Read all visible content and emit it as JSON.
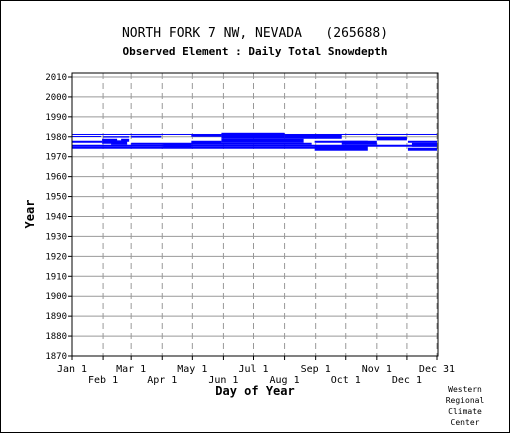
{
  "chart_data": {
    "type": "bar",
    "title": "NORTH FORK 7 NW, NEVADA   (265688)",
    "subtitle": "Observed Element : Daily Total Snowdepth",
    "xlabel": "Day of Year",
    "ylabel": "Year",
    "xlim": [
      1,
      366
    ],
    "ylim": [
      1870,
      2012
    ],
    "yticks": [
      1870,
      1880,
      1890,
      1900,
      1910,
      1920,
      1930,
      1940,
      1950,
      1960,
      1970,
      1980,
      1990,
      2000,
      2010
    ],
    "xticks_upper": [
      {
        "label": "Jan 1",
        "day": 1
      },
      {
        "label": "Mar 1",
        "day": 60
      },
      {
        "label": "May 1",
        "day": 121
      },
      {
        "label": "Jul 1",
        "day": 182
      },
      {
        "label": "Sep 1",
        "day": 244
      },
      {
        "label": "Nov 1",
        "day": 305
      },
      {
        "label": "Dec 31",
        "day": 365
      }
    ],
    "xticks_lower": [
      {
        "label": "Feb 1",
        "day": 32
      },
      {
        "label": "Apr 1",
        "day": 91
      },
      {
        "label": "Jun 1",
        "day": 152
      },
      {
        "label": "Aug 1",
        "day": 213
      },
      {
        "label": "Oct 1",
        "day": 274
      },
      {
        "label": "Dec 1",
        "day": 335
      }
    ],
    "grid": true,
    "colors": {
      "data": "#0000ff",
      "hgrid": "#999999",
      "vgrid": "#999999"
    },
    "segments": [
      {
        "year_start": 1981.0,
        "year_end": 1981.4,
        "day_start": 1,
        "day_end": 365
      },
      {
        "year_start": 1980.0,
        "year_end": 1980.4,
        "day_start": 1,
        "day_end": 30
      },
      {
        "year_start": 1979.6,
        "year_end": 1980.3,
        "day_start": 32,
        "day_end": 58
      },
      {
        "year_start": 1979.6,
        "year_end": 1980.5,
        "day_start": 60,
        "day_end": 90
      },
      {
        "year_start": 1977.0,
        "year_end": 1978.0,
        "day_start": 1,
        "day_end": 31
      },
      {
        "year_start": 1976.5,
        "year_end": 1979.0,
        "day_start": 31,
        "day_end": 46
      },
      {
        "year_start": 1977.5,
        "year_end": 1979.0,
        "day_start": 50,
        "day_end": 58
      },
      {
        "year_start": 1976.0,
        "year_end": 1978.2,
        "day_start": 40,
        "day_end": 56
      },
      {
        "year_start": 1975.0,
        "year_end": 1976.0,
        "day_start": 1,
        "day_end": 365
      },
      {
        "year_start": 1974.0,
        "year_end": 1975.0,
        "day_start": 1,
        "day_end": 245
      },
      {
        "year_start": 1976.0,
        "year_end": 1977.0,
        "day_start": 60,
        "day_end": 240
      },
      {
        "year_start": 1974.5,
        "year_end": 1976.5,
        "day_start": 92,
        "day_end": 120
      },
      {
        "year_start": 1976.8,
        "year_end": 1978.0,
        "day_start": 120,
        "day_end": 150
      },
      {
        "year_start": 1980.0,
        "year_end": 1981.0,
        "day_start": 120,
        "day_end": 150
      },
      {
        "year_start": 1977.0,
        "year_end": 1979.0,
        "day_start": 150,
        "day_end": 232
      },
      {
        "year_start": 1979.0,
        "year_end": 1982.0,
        "day_start": 150,
        "day_end": 213
      },
      {
        "year_start": 1979.0,
        "year_end": 1981.0,
        "day_start": 213,
        "day_end": 270
      },
      {
        "year_start": 1973.0,
        "year_end": 1975.5,
        "day_start": 243,
        "day_end": 296
      },
      {
        "year_start": 1977.0,
        "year_end": 1978.0,
        "day_start": 243,
        "day_end": 296
      },
      {
        "year_start": 1976.0,
        "year_end": 1978.0,
        "day_start": 270,
        "day_end": 305
      },
      {
        "year_start": 1978.2,
        "year_end": 1980.0,
        "day_start": 305,
        "day_end": 335
      },
      {
        "year_start": 1977.0,
        "year_end": 1978.0,
        "day_start": 336,
        "day_end": 365
      },
      {
        "year_start": 1973.0,
        "year_end": 1974.5,
        "day_start": 336,
        "day_end": 365
      },
      {
        "year_start": 1975.0,
        "year_end": 1977.0,
        "day_start": 340,
        "day_end": 365
      }
    ]
  },
  "credit": [
    "Western",
    "Regional",
    "Climate",
    "Center"
  ]
}
